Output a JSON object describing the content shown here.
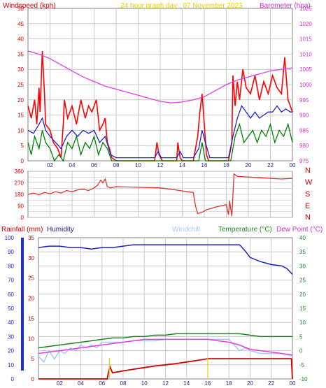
{
  "header": {
    "windspeed_title": "Windspeed (kph)",
    "graph_title": "24 hour graph day : 07 November 2023",
    "barometer_title": "Barometer (hpa)"
  },
  "colors": {
    "wind_gust": "#ff0000",
    "wind_avg": "#2020d0",
    "wind_low": "#008000",
    "baro": "#e040e0",
    "dir": "#e03030",
    "rain": "#cc0000",
    "humidity": "#2020c0",
    "windchill": "#a8c8f0",
    "temp": "#208020",
    "dew": "#e040e0",
    "title_yellow": "#e8d000",
    "frame": "#808080",
    "grid": "#c8c8c8"
  },
  "x_ticks": [
    "02",
    "04",
    "06",
    "08",
    "10",
    "12",
    "14",
    "16",
    "18",
    "20",
    "22",
    "00"
  ],
  "compass_letters": [
    "N",
    "W",
    "S",
    "E",
    "N"
  ],
  "bottom_legend": {
    "rainfall": "Rainfall (mm)",
    "humidity": "Humidity",
    "windchill": "Windchill",
    "temperature": "Temperature (°C)",
    "dewpoint": "Dew Point (°C)"
  },
  "chart_data": [
    {
      "type": "line",
      "title": "24 hour graph day : 07 November 2023",
      "xlabel": "",
      "ylabel": "Windspeed (kph)",
      "ylabel_right": "Barometer (hpa)",
      "x_unit": "hour",
      "xlim": [
        0,
        24
      ],
      "ylim": [
        0,
        50
      ],
      "yticks": [
        0,
        5,
        10,
        15,
        20,
        25,
        30,
        35,
        40,
        45,
        50
      ],
      "ylim_right": [
        975,
        1025
      ],
      "yticks_right": [
        975,
        980,
        985,
        990,
        995,
        1000,
        1005,
        1010,
        1015,
        1020,
        1025
      ],
      "series": [
        {
          "name": "Windspeed (kph)",
          "axis": "left",
          "style": "gust",
          "x": [
            0,
            0.3,
            0.6,
            0.8,
            1.0,
            1.1,
            1.3,
            1.5,
            1.6,
            2.0,
            2.3,
            2.7,
            3.0,
            3.2,
            3.3,
            3.6,
            4.0,
            4.4,
            4.8,
            5.2,
            5.5,
            5.8,
            6.2,
            6.5,
            6.8,
            7.0,
            7.2,
            7.4,
            7.6,
            8.0,
            11.5,
            11.7,
            11.9,
            12.2,
            13.5,
            13.6,
            13.8,
            14.0,
            15.0,
            15.4,
            15.6,
            15.8,
            16.0,
            16.2,
            16.4,
            16.6,
            17.0,
            18.2,
            18.5,
            18.6,
            18.8,
            19.0,
            19.2,
            19.5,
            19.8,
            20.2,
            20.6,
            21.0,
            21.4,
            21.8,
            22.2,
            22.6,
            23.0,
            23.3,
            23.6,
            23.8,
            24.0
          ],
          "y": [
            18,
            14,
            20,
            12,
            24,
            16,
            36,
            22,
            12,
            10,
            6,
            4,
            1,
            12,
            20,
            14,
            18,
            12,
            20,
            14,
            18,
            16,
            20,
            10,
            12,
            14,
            6,
            4,
            1,
            0,
            0,
            6,
            2,
            0,
            0,
            6,
            1,
            0,
            0,
            8,
            16,
            22,
            12,
            2,
            0,
            0,
            0,
            0,
            6,
            28,
            18,
            26,
            20,
            30,
            24,
            22,
            28,
            20,
            26,
            22,
            28,
            24,
            22,
            34,
            20,
            18,
            16
          ]
        },
        {
          "name": "Windspeed avg",
          "axis": "left",
          "style": "avg",
          "x": [
            0,
            0.5,
            1.0,
            1.3,
            1.6,
            2.0,
            2.5,
            3.0,
            3.5,
            4.0,
            4.5,
            5.0,
            5.5,
            6.0,
            6.5,
            7.0,
            7.5,
            8.0,
            11.5,
            11.8,
            12.1,
            13.5,
            13.8,
            14.1,
            15.0,
            15.5,
            15.8,
            16.1,
            16.5,
            18.2,
            18.6,
            19.0,
            19.4,
            19.8,
            20.2,
            20.6,
            21.0,
            21.4,
            21.8,
            22.2,
            22.6,
            23.0,
            23.4,
            23.8,
            24.0
          ],
          "y": [
            10,
            9,
            12,
            14,
            10,
            8,
            6,
            4,
            8,
            10,
            8,
            10,
            9,
            10,
            6,
            8,
            2,
            1,
            1,
            3,
            1,
            1,
            3,
            1,
            1,
            4,
            10,
            6,
            1,
            1,
            8,
            14,
            18,
            16,
            14,
            16,
            14,
            15,
            16,
            16,
            18,
            16,
            17,
            16,
            16
          ]
        },
        {
          "name": "Windspeed low",
          "axis": "left",
          "style": "low",
          "x": [
            0,
            0.3,
            0.6,
            1.0,
            1.3,
            1.6,
            2.0,
            2.4,
            2.8,
            3.2,
            3.6,
            4.0,
            4.4,
            4.8,
            5.2,
            5.6,
            6.0,
            6.4,
            6.8,
            7.2,
            7.6,
            8.0,
            15.5,
            15.8,
            16.1,
            18.4,
            18.8,
            19.2,
            19.6,
            20.0,
            20.4,
            20.8,
            21.2,
            21.6,
            22.0,
            22.4,
            22.8,
            23.2,
            23.6,
            24.0
          ],
          "y": [
            6,
            2,
            8,
            4,
            10,
            6,
            4,
            0,
            2,
            0,
            6,
            4,
            8,
            2,
            6,
            4,
            8,
            2,
            6,
            4,
            0,
            0,
            0,
            6,
            0,
            0,
            8,
            12,
            6,
            8,
            10,
            6,
            10,
            8,
            12,
            6,
            10,
            8,
            12,
            6
          ]
        },
        {
          "name": "Barometer (hpa)",
          "axis": "right",
          "x": [
            0,
            1,
            2,
            3,
            4,
            5,
            6,
            7,
            8,
            9,
            10,
            11,
            12,
            13,
            14,
            15,
            16,
            17,
            18,
            19,
            20,
            21,
            22,
            23,
            24
          ],
          "y": [
            1011,
            1010,
            1008.5,
            1006.5,
            1004.5,
            1002.5,
            1001,
            999.5,
            998.5,
            997.5,
            996.5,
            995.5,
            994.5,
            994,
            994.3,
            995,
            996,
            998,
            1000,
            1001.5,
            1002.5,
            1003.5,
            1004.5,
            1005,
            1005.5
          ]
        }
      ]
    },
    {
      "type": "line",
      "title": "",
      "xlabel": "",
      "ylabel": "",
      "x_unit": "hour",
      "xlim": [
        0,
        24
      ],
      "ylim": [
        0,
        360
      ],
      "yticks": [
        0,
        45,
        90,
        135,
        180,
        225,
        270,
        315,
        360
      ],
      "ytick_labels": [
        "0",
        "",
        "90",
        "",
        "180",
        "",
        "270",
        "",
        "360"
      ],
      "series": [
        {
          "name": "Wind direction",
          "axis": "left",
          "x": [
            0,
            0.5,
            1.0,
            1.5,
            2.0,
            2.5,
            3.0,
            3.5,
            4.0,
            4.5,
            5.0,
            5.5,
            6.0,
            6.3,
            6.6,
            6.8,
            7.0,
            7.2,
            7.5,
            8.0,
            10.0,
            12.0,
            13.0,
            14.5,
            15.0,
            15.2,
            15.4,
            15.8,
            16.2,
            16.6,
            17.0,
            17.5,
            18.0,
            18.2,
            18.3,
            18.5,
            18.7,
            19.0,
            20.0,
            21.0,
            22.0,
            23.0,
            24.0
          ],
          "y": [
            180,
            190,
            178,
            195,
            185,
            200,
            190,
            210,
            200,
            215,
            220,
            210,
            230,
            250,
            290,
            270,
            300,
            240,
            230,
            240,
            235,
            230,
            220,
            200,
            195,
            90,
            30,
            40,
            60,
            70,
            80,
            90,
            100,
            20,
            130,
            10,
            340,
            320,
            315,
            310,
            305,
            300,
            305
          ]
        }
      ]
    },
    {
      "type": "line",
      "title": "",
      "xlabel": "",
      "ylabel": "Rainfall (mm)",
      "x_unit": "hour",
      "xlim": [
        0,
        24
      ],
      "ylim": [
        0,
        100
      ],
      "yticks": [
        0,
        10,
        20,
        30,
        40,
        50,
        60,
        70,
        80,
        90,
        100
      ],
      "ylim_humidity_axis": [
        0,
        35
      ],
      "yticks_humidity_axis": [
        0,
        5,
        10,
        15,
        20,
        25,
        30,
        35
      ],
      "ylim_right": [
        -10,
        40
      ],
      "yticks_right": [
        -10,
        -5,
        0,
        5,
        10,
        15,
        20,
        25,
        30,
        35,
        40
      ],
      "series": [
        {
          "name": "Rainfall (mm)",
          "axis": "humidity_axis",
          "x": [
            0,
            6.5,
            6.6,
            6.75,
            7.0,
            8,
            9,
            10,
            11,
            12,
            13,
            14,
            15,
            16,
            17,
            18,
            19,
            20,
            21,
            22,
            23,
            23.9,
            24.0
          ],
          "y": [
            0,
            0,
            1.5,
            3,
            1.5,
            2,
            2.4,
            2.8,
            3.2,
            3.5,
            3.8,
            4.2,
            4.6,
            5,
            5,
            5,
            5,
            5,
            5,
            5,
            5,
            5,
            0
          ]
        },
        {
          "name": "Humidity",
          "axis": "left",
          "x": [
            0,
            1,
            2,
            3,
            4,
            5,
            6,
            7,
            8,
            9,
            10,
            11,
            12,
            13,
            14,
            15,
            16,
            17,
            18,
            19,
            19.5,
            20,
            21,
            22,
            23,
            23.5,
            24
          ],
          "y": [
            93,
            94,
            94,
            93,
            93,
            92,
            93,
            93,
            94,
            95,
            95,
            95,
            95,
            95,
            95,
            95,
            95,
            95,
            95,
            95,
            91,
            86,
            83,
            81,
            80,
            78,
            74
          ]
        },
        {
          "name": "Windchill",
          "axis": "right",
          "x": [
            0,
            0.5,
            1,
            1.5,
            2,
            2.5,
            3,
            3.5,
            4,
            4.5,
            5,
            5.5,
            6,
            7,
            8,
            9,
            10,
            11,
            12,
            13,
            14,
            15,
            16,
            17,
            18,
            18.5,
            19,
            19.5,
            20,
            21,
            22,
            23,
            24
          ],
          "y": [
            -2,
            -4,
            0,
            -3,
            0,
            -1,
            1,
            0,
            2,
            1,
            2,
            1,
            3,
            3,
            3,
            3.5,
            3.5,
            3.5,
            4,
            4,
            4,
            4,
            4,
            4,
            4,
            2,
            0,
            1,
            0,
            -1,
            -1,
            -1,
            -2
          ]
        },
        {
          "name": "Temperature (°C)",
          "axis": "right",
          "x": [
            0,
            1,
            2,
            3,
            4,
            5,
            6,
            7,
            8,
            9,
            10,
            11,
            12,
            13,
            14,
            15,
            16,
            17,
            18,
            19,
            20,
            21,
            22,
            23,
            24
          ],
          "y": [
            1,
            1.5,
            2,
            2.5,
            3,
            3.5,
            4,
            4.5,
            4.5,
            5,
            5,
            5.5,
            5.5,
            6,
            6,
            6,
            6,
            6,
            6,
            6,
            5.5,
            5,
            5,
            5,
            5
          ]
        },
        {
          "name": "Dew Point (°C)",
          "axis": "right",
          "x": [
            0,
            1,
            2,
            3,
            4,
            5,
            6,
            7,
            8,
            9,
            10,
            11,
            12,
            13,
            14,
            15,
            16,
            17,
            18,
            19,
            20,
            21,
            22,
            23,
            24
          ],
          "y": [
            -1,
            -0.5,
            0,
            0.5,
            1,
            1.5,
            2,
            2.5,
            3,
            3.5,
            4,
            4,
            4,
            4,
            4,
            4,
            4,
            3.5,
            3,
            2,
            0.5,
            0,
            -0.5,
            -1,
            -1.5
          ]
        }
      ]
    }
  ]
}
